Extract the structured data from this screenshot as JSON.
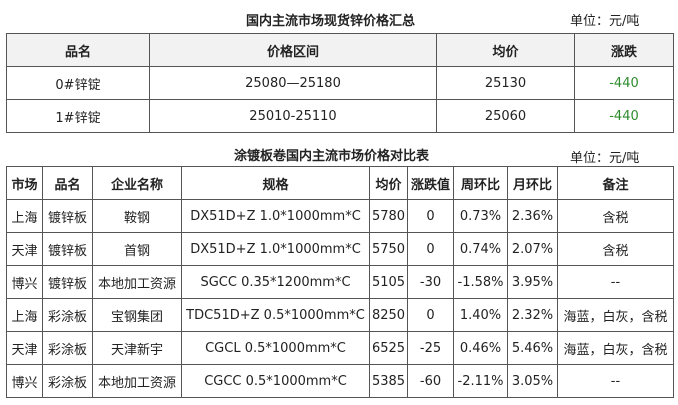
{
  "summary": {
    "title": "国内主流市场现货锌价格汇总",
    "unit": "单位：元/吨",
    "headers": [
      "品名",
      "价格区间",
      "均价",
      "涨跌"
    ],
    "rows": [
      [
        "0#锌锭",
        "25080—25180",
        "25130",
        "-440"
      ],
      [
        "1#锌锭",
        "25010-25110",
        "25060",
        "-440"
      ]
    ]
  },
  "comparison": {
    "title": "涂镀板卷国内主流市场价格对比表",
    "unit": "单位：元/吨",
    "headers": [
      "市场",
      "品名",
      "企业名称",
      "规格",
      "均价",
      "涨跌值",
      "周环比",
      "月环比",
      "备注"
    ],
    "rows": [
      [
        "上海",
        "镀锌板",
        "鞍钢",
        "DX51D+Z 1.0*1000mm*C",
        "5780",
        "0",
        "0.73%",
        "2.36%",
        "含税"
      ],
      [
        "天津",
        "镀锌板",
        "首钢",
        "DX51D+Z 1.0*1000mm*C",
        "5750",
        "0",
        "0.74%",
        "2.07%",
        "含税"
      ],
      [
        "博兴",
        "镀锌板",
        "本地加工资源",
        "SGCC 0.35*1200mm*C",
        "5105",
        "-30",
        "-1.58%",
        "3.95%",
        "--"
      ],
      [
        "上海",
        "彩涂板",
        "宝钢集团",
        "TDC51D+Z 0.5*1000mm*C",
        "8250",
        "0",
        "1.40%",
        "2.32%",
        "海蓝，白灰，含税"
      ],
      [
        "天津",
        "彩涂板",
        "天津新宇",
        "CGCL 0.5*1000mm*C",
        "6525",
        "-25",
        "0.46%",
        "5.46%",
        "海蓝，白灰，含税"
      ],
      [
        "博兴",
        "彩涂板",
        "本地加工资源",
        "CGCC 0.5*1000mm*C",
        "5385",
        "-60",
        "-2.11%",
        "3.05%",
        "--"
      ]
    ]
  },
  "colors": {
    "negative_change": "#2e8b2e",
    "header_bg": "#f2f2f2",
    "border": "#555555"
  }
}
